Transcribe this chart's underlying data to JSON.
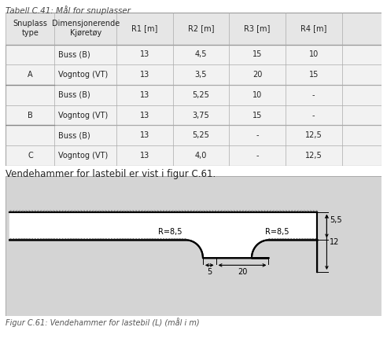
{
  "title_table": "Tabell C.41: Mål for snuplasser",
  "col_headers": [
    "Snuplass\ntype",
    "Dimensjonerende\nKjøretøy",
    "R1 [m]",
    "R2 [m]",
    "R3 [m]",
    "R4 [m]"
  ],
  "rows": [
    [
      "A",
      "Buss (B)",
      "13",
      "4,5",
      "15",
      "10"
    ],
    [
      "A",
      "Vogntog (VT)",
      "13",
      "3,5",
      "20",
      "15"
    ],
    [
      "B",
      "Buss (B)",
      "13",
      "5,25",
      "10",
      "-"
    ],
    [
      "B",
      "Vogntog (VT)",
      "13",
      "3,75",
      "15",
      "-"
    ],
    [
      "C",
      "Buss (B)",
      "13",
      "5,25",
      "-",
      "12,5"
    ],
    [
      "C",
      "Vogntog (VT)",
      "13",
      "4,0",
      "-",
      "12,5"
    ]
  ],
  "between_text": "Vendehammer for lastebil er vist i figur C.61.",
  "fig_caption": "Figur C.61: Vendehammer for lastebil (L) (mål i m)",
  "diagram_bg": "#d4d4d4",
  "table_bg": "#f2f2f2",
  "table_header_bg": "#e6e6e6",
  "font_size_table": 7.0,
  "font_size_caption": 7.0,
  "font_size_between": 8.5,
  "font_size_title": 7.5,
  "font_size_diag": 7.0
}
